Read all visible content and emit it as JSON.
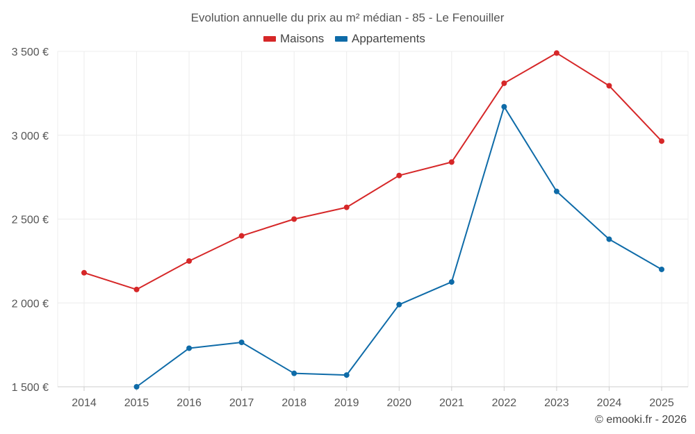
{
  "chart_data": {
    "type": "line",
    "title": "Evolution annuelle du prix au m² médian - 85 - Le Fenouiller",
    "categories": [
      "2014",
      "2015",
      "2016",
      "2017",
      "2018",
      "2019",
      "2020",
      "2021",
      "2022",
      "2023",
      "2024",
      "2025"
    ],
    "ylim": [
      1500,
      3500
    ],
    "yticks": [
      1500,
      2000,
      2500,
      3000,
      3500
    ],
    "ytick_labels": [
      "1 500 €",
      "2 000 €",
      "2 500 €",
      "3 000 €",
      "3 500 €"
    ],
    "grid": true,
    "legend_position": "top-center",
    "series": [
      {
        "name": "Maisons",
        "color": "#d62728",
        "values": [
          2180,
          2080,
          2250,
          2400,
          2500,
          2570,
          2760,
          2840,
          3310,
          3490,
          3295,
          2965
        ]
      },
      {
        "name": "Appartements",
        "color": "#0e6ba8",
        "values": [
          null,
          1500,
          1730,
          1765,
          1580,
          1570,
          1990,
          2125,
          3170,
          2665,
          2380,
          2200
        ]
      }
    ]
  },
  "credit": "© emooki.fr - 2026"
}
